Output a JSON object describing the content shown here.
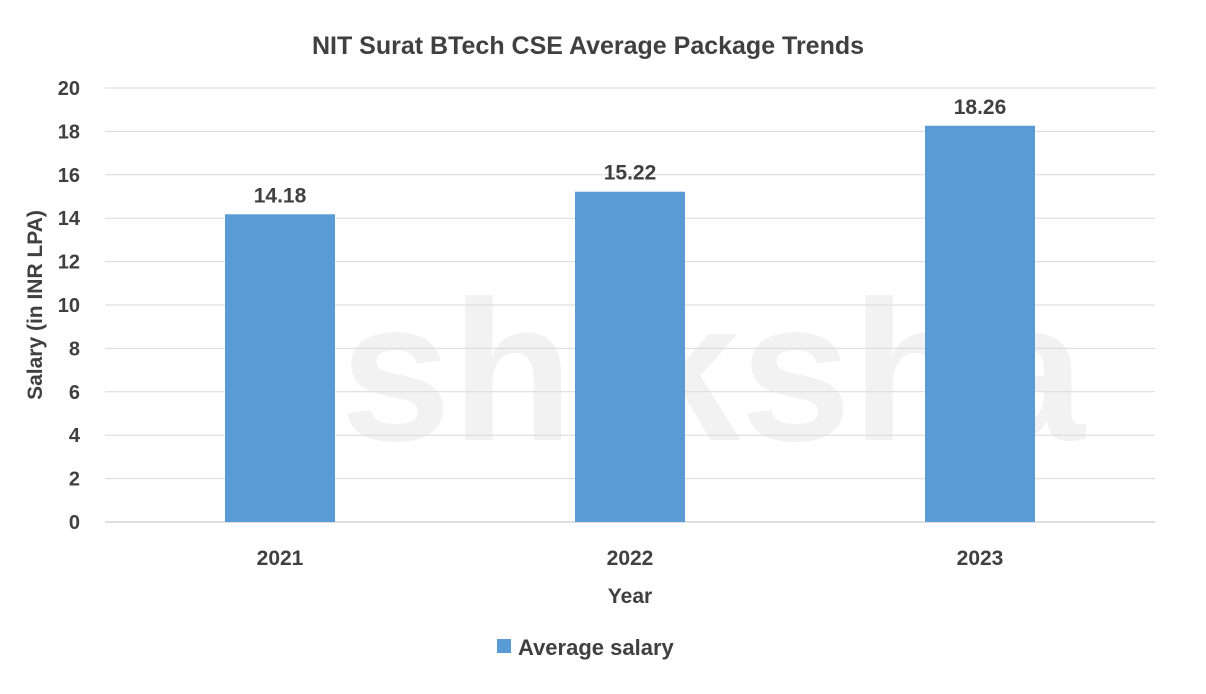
{
  "chart_data": {
    "type": "bar",
    "title": "NIT Surat BTech CSE Average Package Trends",
    "xlabel": "Year",
    "ylabel": "Salary (in INR LPA)",
    "categories": [
      "2021",
      "2022",
      "2023"
    ],
    "series": [
      {
        "name": "Average salary",
        "values": [
          14.18,
          15.22,
          18.26
        ],
        "color": "#5B9BD5"
      }
    ],
    "data_labels": [
      "14.18",
      "15.22",
      "18.26"
    ],
    "ylim": [
      0,
      20
    ],
    "yticks": [
      "0",
      "2",
      "4",
      "6",
      "8",
      "10",
      "12",
      "14",
      "16",
      "18",
      "20"
    ],
    "grid": true,
    "legend_position": "bottom"
  },
  "watermark": "shiksha"
}
